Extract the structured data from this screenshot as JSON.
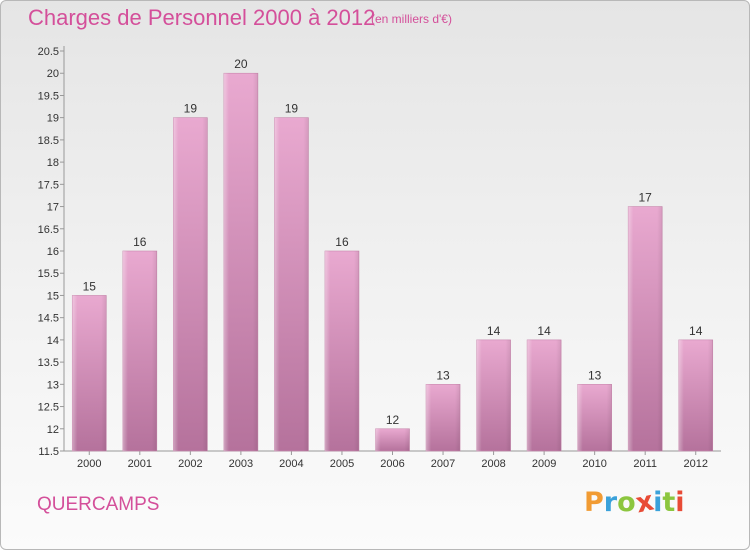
{
  "title": "Charges de Personnel 2000 à 2012",
  "unit": "(en milliers d'€)",
  "commune": "QUERCAMPS",
  "logo": {
    "letters": [
      "P",
      "r",
      "o",
      "x",
      "i",
      "t",
      "i"
    ],
    "colors": [
      "#f19b33",
      "#3aa1da",
      "#8cc63f",
      "#e84b36",
      "#3aa1da",
      "#8cc63f",
      "#e84b36"
    ]
  },
  "chart_data": {
    "type": "bar",
    "categories": [
      "2000",
      "2001",
      "2002",
      "2003",
      "2004",
      "2005",
      "2006",
      "2007",
      "2008",
      "2009",
      "2010",
      "2011",
      "2012"
    ],
    "values": [
      15,
      16,
      19,
      20,
      19,
      16,
      12,
      13,
      14,
      14,
      13,
      17,
      14
    ],
    "yticks": [
      "11.5",
      "12",
      "12.5",
      "13",
      "13.5",
      "14",
      "14.5",
      "15",
      "15.5",
      "16",
      "16.5",
      "17",
      "17.5",
      "18",
      "18.5",
      "19",
      "19.5",
      "20",
      "20.5"
    ],
    "ylim": [
      11.5,
      20.5
    ],
    "grid": false,
    "bar_color": "#d98fbb"
  }
}
